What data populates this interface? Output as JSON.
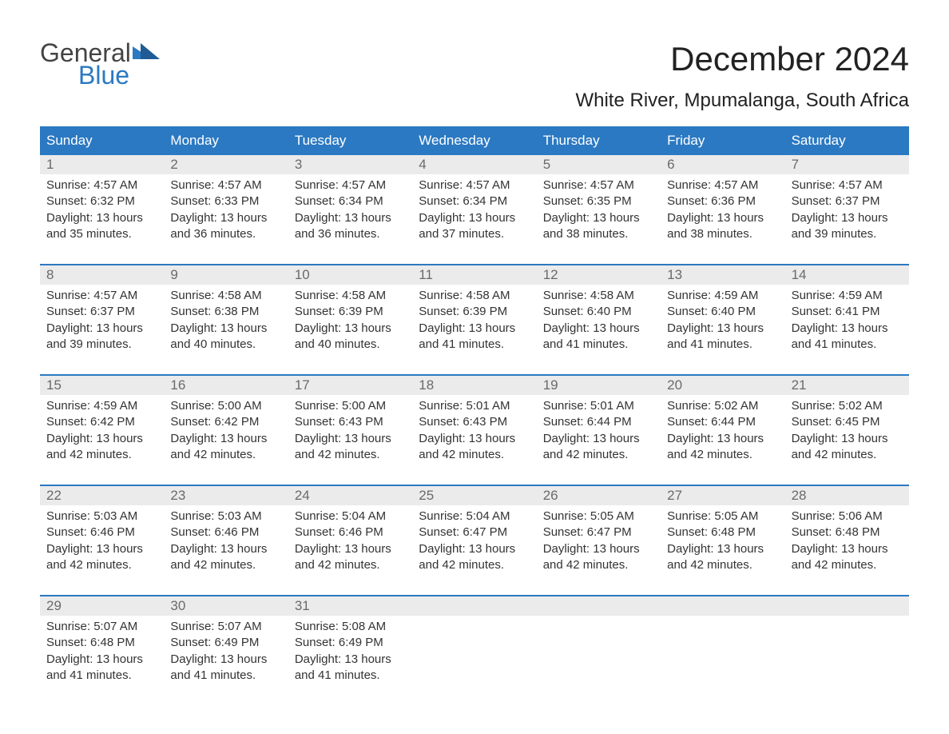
{
  "brand": {
    "word1": "General",
    "word2": "Blue",
    "accent": "#2b79c2",
    "text_color": "#444"
  },
  "title": "December 2024",
  "location": "White River, Mpumalanga, South Africa",
  "colors": {
    "header_bg": "#2b79c2",
    "header_fg": "#ffffff",
    "daynum_bg": "#ebebeb",
    "daynum_fg": "#6a6a6a",
    "body_text": "#333333",
    "page_bg": "#ffffff",
    "rule": "#2b79c2"
  },
  "typography": {
    "title_pt": 42,
    "location_pt": 24,
    "dow_pt": 17,
    "body_pt": 15
  },
  "days_of_week": [
    "Sunday",
    "Monday",
    "Tuesday",
    "Wednesday",
    "Thursday",
    "Friday",
    "Saturday"
  ],
  "weeks": [
    [
      {
        "n": "1",
        "sunrise": "4:57 AM",
        "sunset": "6:32 PM",
        "daylight": "13 hours and 35 minutes."
      },
      {
        "n": "2",
        "sunrise": "4:57 AM",
        "sunset": "6:33 PM",
        "daylight": "13 hours and 36 minutes."
      },
      {
        "n": "3",
        "sunrise": "4:57 AM",
        "sunset": "6:34 PM",
        "daylight": "13 hours and 36 minutes."
      },
      {
        "n": "4",
        "sunrise": "4:57 AM",
        "sunset": "6:34 PM",
        "daylight": "13 hours and 37 minutes."
      },
      {
        "n": "5",
        "sunrise": "4:57 AM",
        "sunset": "6:35 PM",
        "daylight": "13 hours and 38 minutes."
      },
      {
        "n": "6",
        "sunrise": "4:57 AM",
        "sunset": "6:36 PM",
        "daylight": "13 hours and 38 minutes."
      },
      {
        "n": "7",
        "sunrise": "4:57 AM",
        "sunset": "6:37 PM",
        "daylight": "13 hours and 39 minutes."
      }
    ],
    [
      {
        "n": "8",
        "sunrise": "4:57 AM",
        "sunset": "6:37 PM",
        "daylight": "13 hours and 39 minutes."
      },
      {
        "n": "9",
        "sunrise": "4:58 AM",
        "sunset": "6:38 PM",
        "daylight": "13 hours and 40 minutes."
      },
      {
        "n": "10",
        "sunrise": "4:58 AM",
        "sunset": "6:39 PM",
        "daylight": "13 hours and 40 minutes."
      },
      {
        "n": "11",
        "sunrise": "4:58 AM",
        "sunset": "6:39 PM",
        "daylight": "13 hours and 41 minutes."
      },
      {
        "n": "12",
        "sunrise": "4:58 AM",
        "sunset": "6:40 PM",
        "daylight": "13 hours and 41 minutes."
      },
      {
        "n": "13",
        "sunrise": "4:59 AM",
        "sunset": "6:40 PM",
        "daylight": "13 hours and 41 minutes."
      },
      {
        "n": "14",
        "sunrise": "4:59 AM",
        "sunset": "6:41 PM",
        "daylight": "13 hours and 41 minutes."
      }
    ],
    [
      {
        "n": "15",
        "sunrise": "4:59 AM",
        "sunset": "6:42 PM",
        "daylight": "13 hours and 42 minutes."
      },
      {
        "n": "16",
        "sunrise": "5:00 AM",
        "sunset": "6:42 PM",
        "daylight": "13 hours and 42 minutes."
      },
      {
        "n": "17",
        "sunrise": "5:00 AM",
        "sunset": "6:43 PM",
        "daylight": "13 hours and 42 minutes."
      },
      {
        "n": "18",
        "sunrise": "5:01 AM",
        "sunset": "6:43 PM",
        "daylight": "13 hours and 42 minutes."
      },
      {
        "n": "19",
        "sunrise": "5:01 AM",
        "sunset": "6:44 PM",
        "daylight": "13 hours and 42 minutes."
      },
      {
        "n": "20",
        "sunrise": "5:02 AM",
        "sunset": "6:44 PM",
        "daylight": "13 hours and 42 minutes."
      },
      {
        "n": "21",
        "sunrise": "5:02 AM",
        "sunset": "6:45 PM",
        "daylight": "13 hours and 42 minutes."
      }
    ],
    [
      {
        "n": "22",
        "sunrise": "5:03 AM",
        "sunset": "6:46 PM",
        "daylight": "13 hours and 42 minutes."
      },
      {
        "n": "23",
        "sunrise": "5:03 AM",
        "sunset": "6:46 PM",
        "daylight": "13 hours and 42 minutes."
      },
      {
        "n": "24",
        "sunrise": "5:04 AM",
        "sunset": "6:46 PM",
        "daylight": "13 hours and 42 minutes."
      },
      {
        "n": "25",
        "sunrise": "5:04 AM",
        "sunset": "6:47 PM",
        "daylight": "13 hours and 42 minutes."
      },
      {
        "n": "26",
        "sunrise": "5:05 AM",
        "sunset": "6:47 PM",
        "daylight": "13 hours and 42 minutes."
      },
      {
        "n": "27",
        "sunrise": "5:05 AM",
        "sunset": "6:48 PM",
        "daylight": "13 hours and 42 minutes."
      },
      {
        "n": "28",
        "sunrise": "5:06 AM",
        "sunset": "6:48 PM",
        "daylight": "13 hours and 42 minutes."
      }
    ],
    [
      {
        "n": "29",
        "sunrise": "5:07 AM",
        "sunset": "6:48 PM",
        "daylight": "13 hours and 41 minutes."
      },
      {
        "n": "30",
        "sunrise": "5:07 AM",
        "sunset": "6:49 PM",
        "daylight": "13 hours and 41 minutes."
      },
      {
        "n": "31",
        "sunrise": "5:08 AM",
        "sunset": "6:49 PM",
        "daylight": "13 hours and 41 minutes."
      },
      null,
      null,
      null,
      null
    ]
  ],
  "labels": {
    "sunrise": "Sunrise:",
    "sunset": "Sunset:",
    "daylight": "Daylight:"
  }
}
